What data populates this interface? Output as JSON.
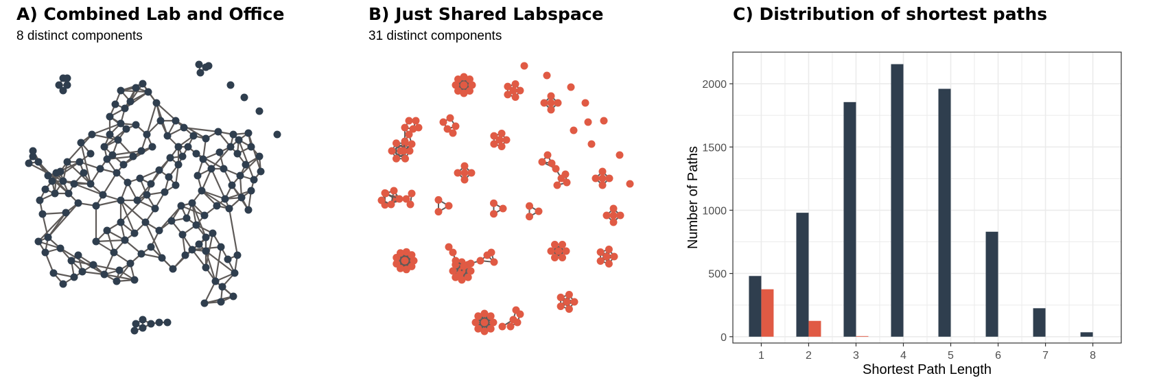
{
  "panels": {
    "a": {
      "title": "A) Combined Lab and Office",
      "subtitle": "8 distinct components"
    },
    "b": {
      "title": "B) Just Shared Labspace",
      "subtitle": "31 distinct components"
    },
    "c": {
      "title": "C) Distribution of shortest paths"
    }
  },
  "colors": {
    "combined": "#2f3e4e",
    "lab": "#e05a44",
    "edge": "#5e5a58",
    "grid": "#ebebeb",
    "axis_text": "#4d4d4d"
  },
  "chart_data": {
    "type": "bar",
    "title": "C) Distribution of shortest paths",
    "xlabel": "Shortest Path Length",
    "ylabel": "Number of Paths",
    "categories": [
      "1",
      "2",
      "3",
      "4",
      "5",
      "6",
      "7",
      "8"
    ],
    "series": [
      {
        "name": "Combined Lab and Office",
        "color": "#2f3e4e",
        "values": [
          480,
          980,
          1855,
          2155,
          1960,
          830,
          225,
          35
        ]
      },
      {
        "name": "Just Shared Labspace",
        "color": "#e05a44",
        "values": [
          375,
          125,
          5,
          0,
          0,
          0,
          0,
          0
        ]
      }
    ],
    "ylim": [
      -50,
      2250
    ],
    "yticks": [
      0,
      500,
      1000,
      1500,
      2000
    ],
    "grid": true,
    "legend": "none"
  }
}
